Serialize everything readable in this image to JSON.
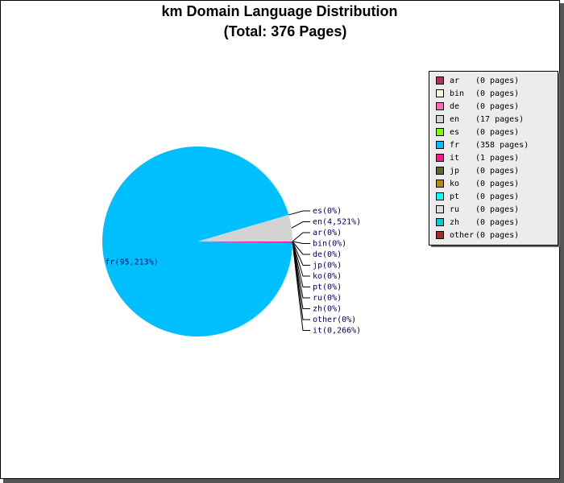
{
  "chart_data": {
    "type": "pie",
    "title": "km Domain Language Distribution",
    "subtitle": "(Total: 376 Pages)",
    "categories": [
      "ar",
      "bin",
      "de",
      "en",
      "es",
      "fr",
      "it",
      "jp",
      "ko",
      "pt",
      "ru",
      "zh",
      "other"
    ],
    "values": [
      0,
      0,
      0,
      4.521,
      0,
      95.213,
      0.266,
      0,
      0,
      0,
      0,
      0,
      0
    ],
    "value_labels": [
      "ar(0%)",
      "bin(0%)",
      "de(0%)",
      "en(4,521%)",
      "es(0%)",
      "fr(95,213%)",
      "it(0,266%)",
      "jp(0%)",
      "ko(0%)",
      "pt(0%)",
      "ru(0%)",
      "zh(0%)",
      "other(0%)"
    ],
    "legend_labels": [
      "(0 pages)",
      "(0 pages)",
      "(0 pages)",
      "(17 pages)",
      "(0 pages)",
      "(358 pages)",
      "(1 pages)",
      "(0 pages)",
      "(0 pages)",
      "(0 pages)",
      "(0 pages)",
      "(0 pages)",
      "(0 pages)"
    ],
    "colors": [
      "#b03060",
      "#f5f5dc",
      "#ff69b4",
      "#d3d3d3",
      "#7cfc00",
      "#00bfff",
      "#ff1493",
      "#556b2f",
      "#b8860b",
      "#00ffff",
      "#dcdcdc",
      "#00ced1",
      "#a52a2a"
    ],
    "legend": "upper right"
  }
}
